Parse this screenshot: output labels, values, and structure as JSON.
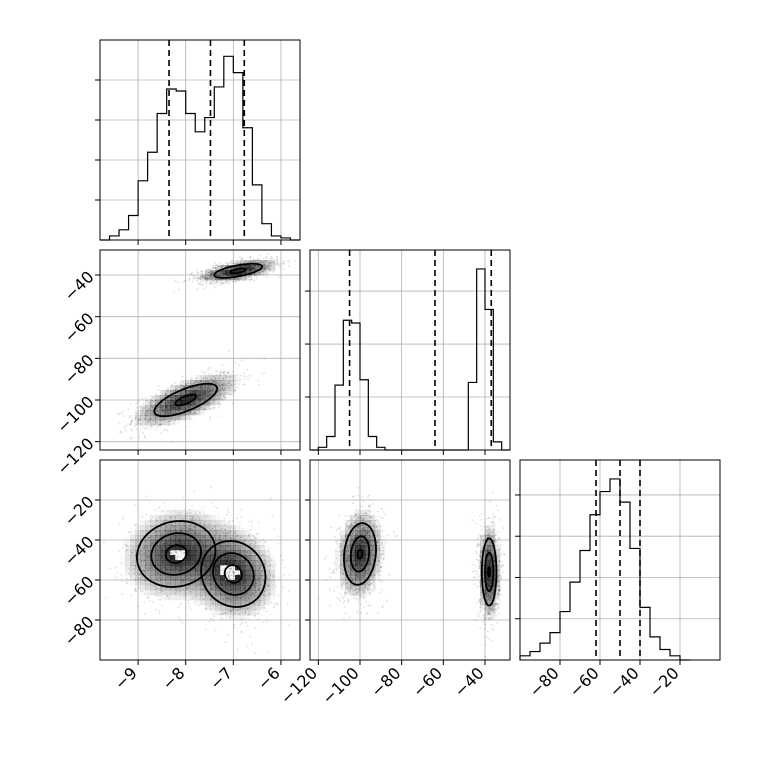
{
  "chart_data": {
    "type": "corner",
    "parameters": [
      {
        "range": [
          -9.8,
          -5.6
        ],
        "ticks": [
          -9,
          -8,
          -7,
          -6
        ],
        "tick_labels": [
          "−9",
          "−8",
          "−7",
          "−6"
        ]
      },
      {
        "range": [
          -124,
          -28
        ],
        "ticks": [
          -120,
          -100,
          -80,
          -60,
          -40
        ],
        "tick_labels": [
          "−120",
          "−100",
          "−80",
          "−60",
          "−40"
        ]
      },
      {
        "range": [
          -100,
          0
        ],
        "ticks": [
          -80,
          -60,
          -40,
          -20
        ],
        "tick_labels": [
          "−80",
          "−60",
          "−40",
          "−20"
        ]
      }
    ],
    "grid": true,
    "histograms": [
      {
        "parameter": 0,
        "bin_edges": [
          -9.8,
          -9.6,
          -9.4,
          -9.2,
          -9.0,
          -8.8,
          -8.6,
          -8.4,
          -8.2,
          -8.0,
          -7.8,
          -7.6,
          -7.4,
          -7.2,
          -7.0,
          -6.8,
          -6.6,
          -6.4,
          -6.2,
          -6.0,
          -5.8,
          -5.6
        ],
        "counts": [
          0,
          0.02,
          0.05,
          0.12,
          0.29,
          0.43,
          0.62,
          0.74,
          0.73,
          0.62,
          0.53,
          0.6,
          0.75,
          0.9,
          0.82,
          0.55,
          0.27,
          0.08,
          0.02,
          0.01,
          0
        ],
        "ylim": [
          0,
          0.98
        ],
        "quantiles": [
          -8.35,
          -7.48,
          -6.77
        ]
      },
      {
        "parameter": 1,
        "bin_edges": [
          -124,
          -120,
          -116,
          -112,
          -108,
          -104,
          -100,
          -96,
          -92,
          -88,
          -84,
          -80,
          -76,
          -72,
          -68,
          -64,
          -60,
          -56,
          -52,
          -48,
          -44,
          -40,
          -36,
          -32,
          -28
        ],
        "counts": [
          0,
          0.01,
          0.05,
          0.24,
          0.48,
          0.47,
          0.26,
          0.05,
          0.01,
          0,
          0,
          0,
          0,
          0,
          0,
          0,
          0,
          0,
          0,
          0.25,
          0.67,
          0.52,
          0.03,
          0
        ],
        "ylim": [
          0,
          0.74
        ],
        "quantiles": [
          -105,
          -64,
          -37
        ]
      },
      {
        "parameter": 2,
        "bin_edges": [
          -100,
          -95,
          -90,
          -85,
          -80,
          -75,
          -70,
          -65,
          -60,
          -55,
          -50,
          -45,
          -40,
          -35,
          -30,
          -25,
          -20,
          -15
        ],
        "counts": [
          0.02,
          0.04,
          0.08,
          0.13,
          0.23,
          0.37,
          0.52,
          0.69,
          0.8,
          0.86,
          0.75,
          0.53,
          0.25,
          0.11,
          0.05,
          0.02,
          0
        ],
        "ylim": [
          0,
          0.95
        ],
        "quantiles": [
          -62,
          -50,
          -40
        ]
      }
    ],
    "pairs": [
      {
        "x_param": 0,
        "y_param": 1,
        "modes": [
          {
            "mean": [
              -8.0,
              -100
            ],
            "std": [
              0.55,
              6.5
            ],
            "corr": 0.7,
            "weight": 0.5
          },
          {
            "mean": [
              -6.9,
              -38
            ],
            "std": [
              0.42,
              2.8
            ],
            "corr": 0.6,
            "weight": 0.5
          }
        ],
        "contour_levels": [
          1.0,
          1.8
        ]
      },
      {
        "x_param": 0,
        "y_param": 2,
        "modes": [
          {
            "mean": [
              -8.2,
              -47
            ],
            "std": [
              0.55,
              11
            ],
            "corr": 0.1,
            "weight": 0.5
          },
          {
            "mean": [
              -7.0,
              -57
            ],
            "std": [
              0.45,
              11
            ],
            "corr": -0.1,
            "weight": 0.5
          }
        ],
        "contour_levels": [
          0.7,
          1.25,
          1.8
        ]
      },
      {
        "x_param": 1,
        "y_param": 2,
        "modes": [
          {
            "mean": [
              -100,
              -47
            ],
            "std": [
              5.5,
              11
            ],
            "corr": 0.15,
            "weight": 0.5
          },
          {
            "mean": [
              -38,
              -56
            ],
            "std": [
              2.5,
              12
            ],
            "corr": 0.0,
            "weight": 0.5
          }
        ],
        "contour_levels": [
          0.8,
          1.4,
          2.0
        ]
      }
    ]
  }
}
